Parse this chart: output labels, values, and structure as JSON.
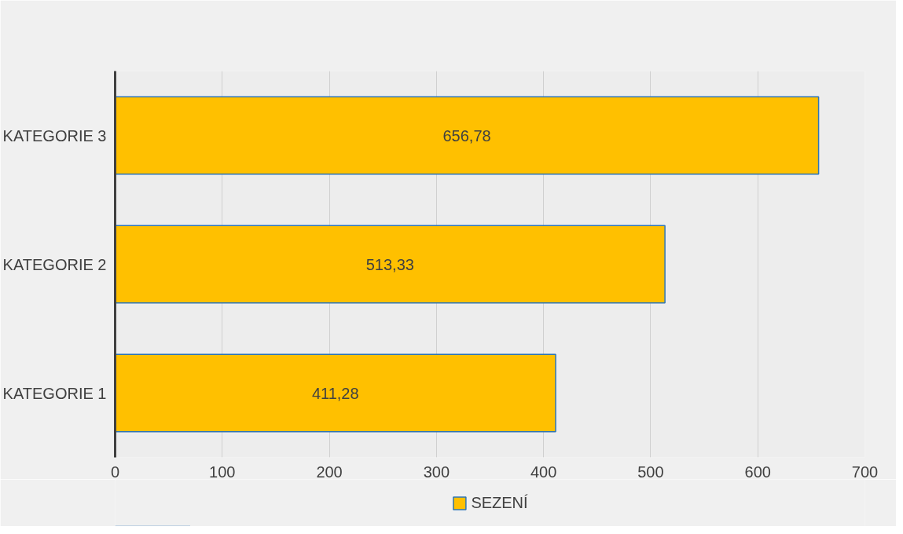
{
  "chart_data": {
    "type": "bar",
    "orientation": "horizontal",
    "categories": [
      "KATEGORIE 3",
      "KATEGORIE 2",
      "KATEGORIE 1"
    ],
    "series": [
      {
        "name": "SEZENÍ",
        "color": "#ffc000",
        "values": [
          656.78,
          513.33,
          411.28
        ],
        "value_labels": [
          "656,78",
          "513,33",
          "411,28"
        ]
      }
    ],
    "xlim": [
      0,
      700
    ],
    "xticks": [
      0,
      100,
      200,
      300,
      400,
      500,
      600,
      700
    ],
    "grid": "x",
    "legend": "bottom"
  }
}
